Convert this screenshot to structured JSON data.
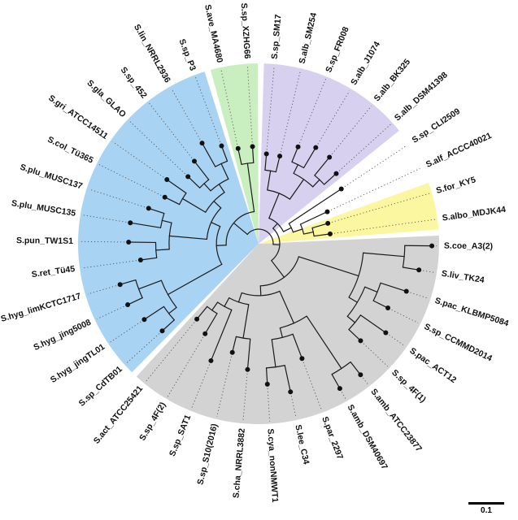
{
  "scalebar_label": "0.1",
  "chart_data": {
    "type": "radial_phylogenetic_tree",
    "scale_bar": "0.1",
    "groups": {
      "purple": "#d7d1ef",
      "yellow": "#fbf6a0",
      "gray": "#d3d3d3",
      "blue": "#a9d3f2",
      "green": "#c9efc0",
      "none": "#ffffff"
    },
    "taxa": [
      {
        "label": "S.sp_SM17",
        "group": "purple",
        "tip": 0.5
      },
      {
        "label": "S.alb_SM254",
        "group": "purple",
        "tip": 0.5
      },
      {
        "label": "S.sp_FR008",
        "group": "purple",
        "tip": 0.58
      },
      {
        "label": "S.alb_J1074",
        "group": "purple",
        "tip": 0.62
      },
      {
        "label": "S.alb_BK325",
        "group": "purple",
        "tip": 0.62
      },
      {
        "label": "S.alb_DSM41398",
        "group": "purple",
        "tip": 0.58
      },
      {
        "label": "S.sp_CLI2509",
        "group": "none",
        "tip": 0.55
      },
      {
        "label": "S.alf_ACCC40021",
        "group": "none",
        "tip": 0.42
      },
      {
        "label": "S.for_KY5",
        "group": "yellow",
        "tip": 0.4
      },
      {
        "label": "S.albo_MDJK44",
        "group": "yellow",
        "tip": 0.4
      },
      {
        "label": "S.coe_A3(2)",
        "group": "gray",
        "tip": 0.96
      },
      {
        "label": "S.liv_TK24",
        "group": "gray",
        "tip": 0.9
      },
      {
        "label": "S.pac_KLBMP5084",
        "group": "gray",
        "tip": 0.86
      },
      {
        "label": "S.sp_CCMMD2014",
        "group": "gray",
        "tip": 0.8
      },
      {
        "label": "S.pac_ACT12",
        "group": "gray",
        "tip": 0.86
      },
      {
        "label": "S.sp_4F(1)",
        "group": "gray",
        "tip": 0.78
      },
      {
        "label": "S.amb_ATCC23877",
        "group": "gray",
        "tip": 0.92
      },
      {
        "label": "S.amb_DSM40697",
        "group": "gray",
        "tip": 0.92
      },
      {
        "label": "S.par_2297",
        "group": "gray",
        "tip": 0.68
      },
      {
        "label": "S.lee_C34",
        "group": "gray",
        "tip": 0.84
      },
      {
        "label": "S.cya_nonNMWT1",
        "group": "gray",
        "tip": 0.78
      },
      {
        "label": "S.cha_NRRL3882",
        "group": "gray",
        "tip": 0.7
      },
      {
        "label": "S.sp_S10(2016)",
        "group": "gray",
        "tip": 0.62
      },
      {
        "label": "S.sp_SAT1",
        "group": "gray",
        "tip": 0.7
      },
      {
        "label": "S.sp_4F(2)",
        "group": "gray",
        "tip": 0.58
      },
      {
        "label": "S.act_ATCC25421",
        "group": "gray",
        "tip": 0.54
      },
      {
        "label": "S.sp_CdTB01",
        "group": "blue",
        "tip": 0.72
      },
      {
        "label": "S.hyg_jingTL01",
        "group": "blue",
        "tip": 0.76
      },
      {
        "label": "S.hyg_jing5008",
        "group": "blue",
        "tip": 0.8
      },
      {
        "label": "S.hyg_limKCTC1717",
        "group": "blue",
        "tip": 0.8
      },
      {
        "label": "S.ret_Tü45",
        "group": "blue",
        "tip": 0.66
      },
      {
        "label": "S.pun_TW1S1",
        "group": "blue",
        "tip": 0.72
      },
      {
        "label": "S.plu_MUSC135",
        "group": "blue",
        "tip": 0.72
      },
      {
        "label": "S.plu_MUSC137",
        "group": "blue",
        "tip": 0.64
      },
      {
        "label": "S.col_Tü365",
        "group": "blue",
        "tip": 0.58
      },
      {
        "label": "S.gri_ATCC14511",
        "group": "blue",
        "tip": 0.62
      },
      {
        "label": "S.gla_GLAO",
        "group": "blue",
        "tip": 0.54
      },
      {
        "label": "S.sp_452",
        "group": "blue",
        "tip": 0.58
      },
      {
        "label": "S.lin_NRRL2936",
        "group": "blue",
        "tip": 0.64
      },
      {
        "label": "S.sp_P3",
        "group": "blue",
        "tip": 0.58
      },
      {
        "label": "S.ave_MA4680",
        "group": "green",
        "tip": 0.54
      },
      {
        "label": "S.sp_XZHG66",
        "group": "green",
        "tip": 0.54
      }
    ],
    "tree": [
      [
        [
          [
            [
              0,
              1
            ],
            [
              [
                2,
                3
              ],
              [
                4,
                5
              ]
            ]
          ],
          [
            6,
            [
              7,
              [
                8,
                9
              ]
            ]
          ]
        ],
        [
          [
            [
              10,
              11
            ],
            [
              [
                12,
                13
              ],
              [
                14,
                15
              ]
            ]
          ],
          [
            [
              [
                16,
                17
              ],
              [
                18,
                [
                  19,
                  20
                ]
              ]
            ],
            [
              [
                21,
                22
              ],
              [
                23,
                [
                  24,
                  25
                ]
              ]
            ]
          ]
        ]
      ],
      [
        [
          [
            [
              26,
              27
            ],
            [
              28,
              29
            ]
          ],
          [
            [
              [
                30,
                31
              ],
              [
                32,
                33
              ]
            ],
            [
              [
                34,
                35
              ],
              [
                [
                  36,
                  37
                ],
                [
                  38,
                  39
                ]
              ]
            ]
          ]
        ],
        [
          40,
          41
        ]
      ]
    ]
  }
}
